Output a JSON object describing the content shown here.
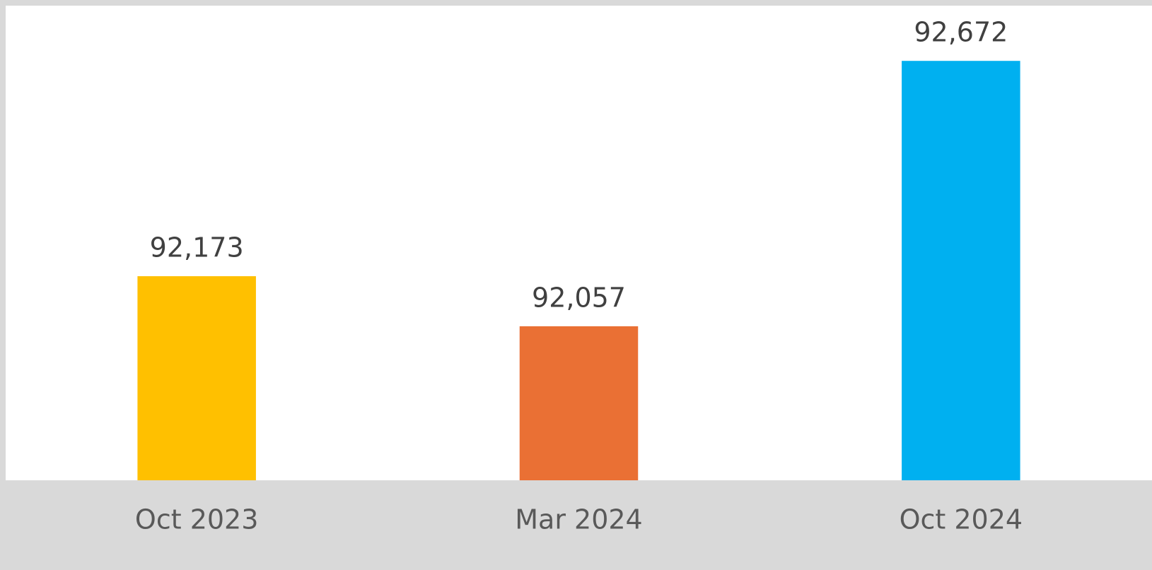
{
  "chart_data": {
    "type": "bar",
    "categories": [
      "Oct 2023",
      "Mar 2024",
      "Oct 2024"
    ],
    "values": [
      92173,
      92057,
      92672
    ],
    "value_labels": [
      "92,173",
      "92,057",
      "92,672"
    ],
    "colors": [
      "#ffc000",
      "#ea7034",
      "#00b0f0"
    ],
    "ylim": [
      91700,
      92800
    ]
  }
}
